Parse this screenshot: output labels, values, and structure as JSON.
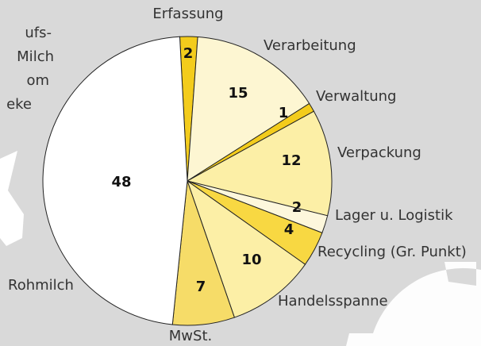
{
  "chart_data": {
    "type": "pie",
    "categories": [
      "Erfassung",
      "Verarbeitung",
      "Verwaltung",
      "Verpackung",
      "Lager u. Logistik",
      "Recycling (Gr. Punkt)",
      "Handelsspanne",
      "MwSt.",
      "Rohmilch"
    ],
    "values": [
      2,
      15,
      1,
      12,
      2,
      4,
      10,
      7,
      48
    ],
    "colors": [
      "#f3cc1c",
      "#fdf6d2",
      "#f3cc1c",
      "#fcefa6",
      "#fdf7dc",
      "#f8d842",
      "#fcefa6",
      "#f6dc68",
      "#ffffff"
    ],
    "annotations": [
      "ufs-",
      "Milch",
      "om",
      "eke"
    ]
  }
}
